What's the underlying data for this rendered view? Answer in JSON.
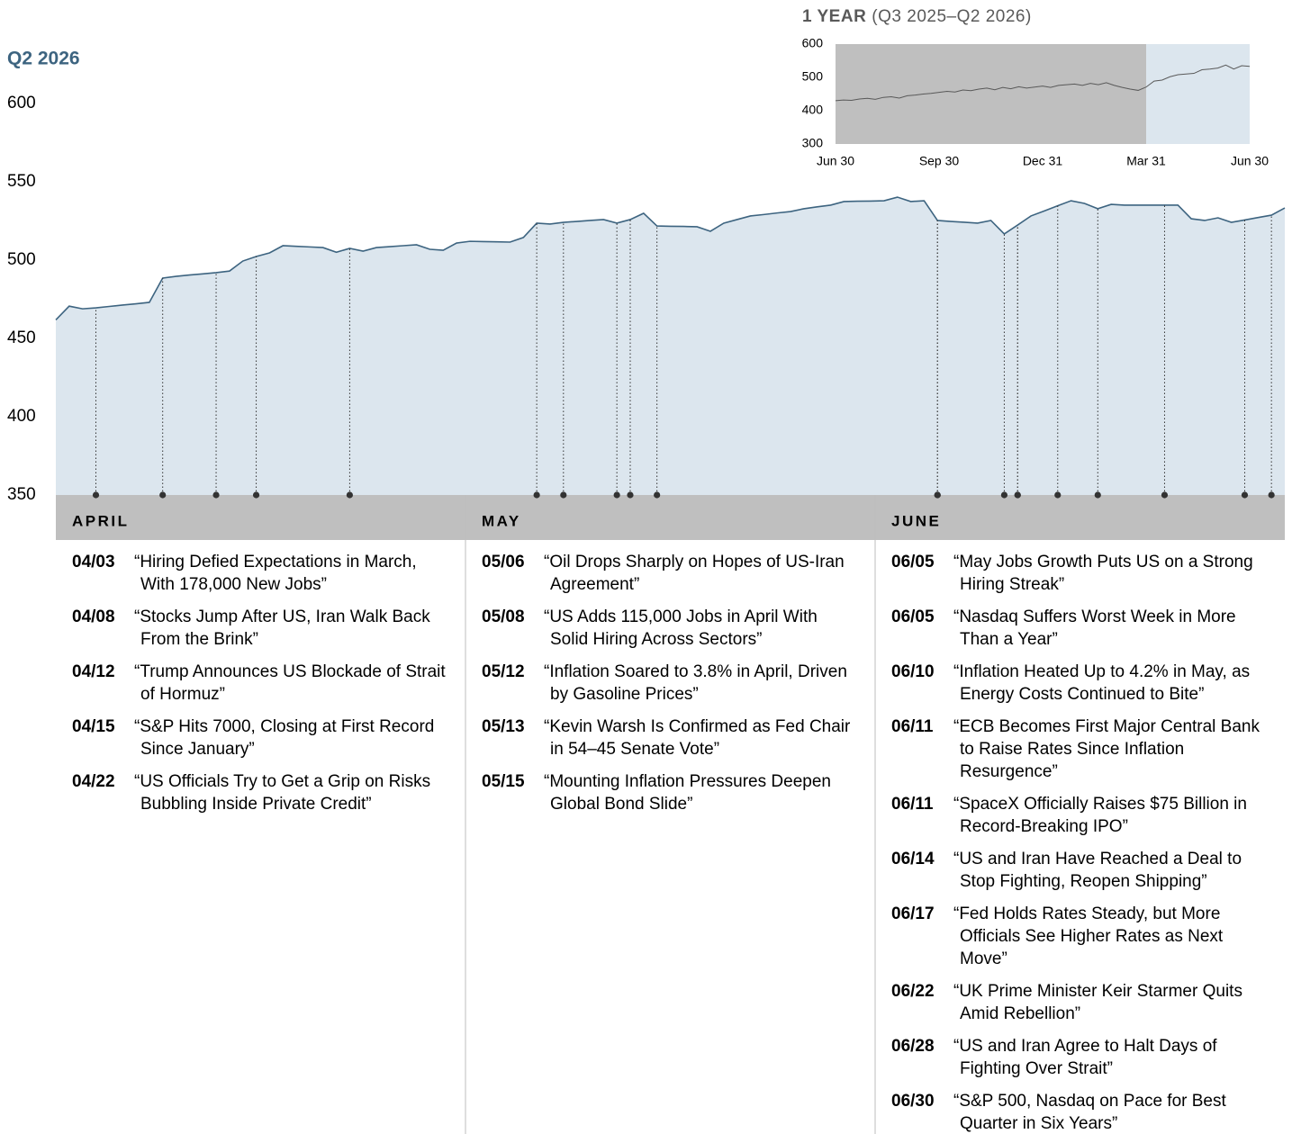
{
  "chart_data": [
    {
      "type": "area",
      "title": "Q2 2026",
      "ylim": [
        350,
        600
      ],
      "yticks": [
        350,
        400,
        450,
        500,
        550,
        600
      ],
      "color": "#3d6480",
      "fill": "#dce6ee",
      "band_color": "#bfbfbf",
      "series": [
        {
          "name": null,
          "color": "#3d6480",
          "values": [
            461.8,
            470.6,
            468.9,
            469.5,
            470.4,
            471.3,
            472.1,
            473,
            488.5,
            489.6,
            490.5,
            491.2,
            492,
            493,
            499.4,
            502.3,
            504.6,
            509.2,
            508.8,
            508.4,
            508,
            505,
            507.5,
            505.7,
            508,
            508.6,
            509.2,
            509.8,
            506.9,
            506.3,
            510.9,
            512,
            511.8,
            511.7,
            511.5,
            514.4,
            523.6,
            523,
            524.1,
            524.7,
            525.3,
            525.9,
            523.6,
            525.9,
            529.9,
            521.8,
            521.6,
            521.5,
            521.3,
            518.4,
            523.6,
            525.9,
            528.2,
            529.1,
            530.1,
            531,
            532.8,
            534,
            535.1,
            537.4,
            537.6,
            537.7,
            537.9,
            540.2,
            537.4,
            537.9,
            525.3,
            524.7,
            524.2,
            523.6,
            525.3,
            516.7,
            522.4,
            528.2,
            531.4,
            534.7,
            537.9,
            536.2,
            532.8,
            535.6,
            535.1,
            535.1,
            535.1,
            535.1,
            535.1,
            526.4,
            525.3,
            527,
            524.1,
            525.6,
            527.2,
            528.7,
            533.3
          ]
        }
      ],
      "months": [
        {
          "name": "APRIL",
          "events": [
            {
              "date": "04/03",
              "headline": "“Hiring Defied Expectations in March, With 178,000 New Jobs”"
            },
            {
              "date": "04/08",
              "headline": "“Stocks Jump After US, Iran Walk Back From the Brink”"
            },
            {
              "date": "04/12",
              "headline": "“Trump Announces US Blockade of Strait of Hormuz”"
            },
            {
              "date": "04/15",
              "headline": "“S&P Hits 7000, Closing at First Record Since January”"
            },
            {
              "date": "04/22",
              "headline": "“US Officials Try to Get a Grip on Risks Bubbling Inside Private Credit”"
            }
          ]
        },
        {
          "name": "MAY",
          "events": [
            {
              "date": "05/06",
              "headline": "“Oil Drops Sharply on Hopes of US-Iran Agreement”"
            },
            {
              "date": "05/08",
              "headline": "“US Adds 115,000 Jobs in April With Solid Hiring Across Sectors”"
            },
            {
              "date": "05/12",
              "headline": "“Inflation Soared to 3.8% in April, Driven by Gasoline Prices”"
            },
            {
              "date": "05/13",
              "headline": "“Kevin Warsh Is Confirmed as Fed Chair in 54–45 Senate Vote”"
            },
            {
              "date": "05/15",
              "headline": "“Mounting Inflation Pressures Deepen Global Bond Slide”"
            }
          ]
        },
        {
          "name": "JUNE",
          "events": [
            {
              "date": "06/05",
              "headline": "“May Jobs Growth Puts US on a Strong Hiring Streak”"
            },
            {
              "date": "06/05",
              "headline": "“Nasdaq Suffers Worst Week in More Than a Year”"
            },
            {
              "date": "06/10",
              "headline": "“Inflation Heated Up to 4.2% in May, as Energy Costs Continued to Bite”"
            },
            {
              "date": "06/11",
              "headline": "“ECB Becomes First Major Central Bank to Raise Rates Since Inflation Resurgence”"
            },
            {
              "date": "06/11",
              "headline": "“SpaceX Officially Raises $75 Billion in Record-Breaking IPO”"
            },
            {
              "date": "06/14",
              "headline": "“US and Iran Have Reached a Deal to Stop Fighting, Reopen Shipping”"
            },
            {
              "date": "06/17",
              "headline": "“Fed Holds Rates Steady, but More Officials See Higher Rates as Next Move”"
            },
            {
              "date": "06/22",
              "headline": "“UK Prime Minister Keir Starmer Quits Amid Rebellion”"
            },
            {
              "date": "06/28",
              "headline": "“US and Iran Agree to Halt Days of Fighting Over Strait”"
            },
            {
              "date": "06/30",
              "headline": "“S&P 500, Nasdaq on Pace for Best Quarter in Six Years”"
            }
          ]
        }
      ]
    },
    {
      "type": "line",
      "title": "1 YEAR",
      "subtitle": "(Q3 2025–Q2 2026)",
      "ylim": [
        300,
        600
      ],
      "yticks": [
        300,
        400,
        500,
        600
      ],
      "xticks": [
        "Jun 30",
        "Sep 30",
        "Dec 31",
        "Mar 31",
        "Jun 30"
      ],
      "background": "#bfbfbf",
      "highlight_start": "Mar 31",
      "highlight_color": "#dce6ee",
      "series": [
        {
          "name": null,
          "color": "#595959",
          "values": [
            430,
            432,
            431,
            435,
            437,
            434,
            440,
            442,
            438,
            445,
            447,
            450,
            452,
            455,
            458,
            456,
            462,
            460,
            465,
            468,
            463,
            470,
            466,
            472,
            468,
            471,
            474,
            470,
            476,
            478,
            480,
            476,
            482,
            478,
            484,
            476,
            470,
            465,
            461,
            471,
            489,
            492,
            502,
            508,
            510,
            512,
            523,
            525,
            528,
            537,
            525,
            535,
            533
          ]
        }
      ]
    }
  ]
}
